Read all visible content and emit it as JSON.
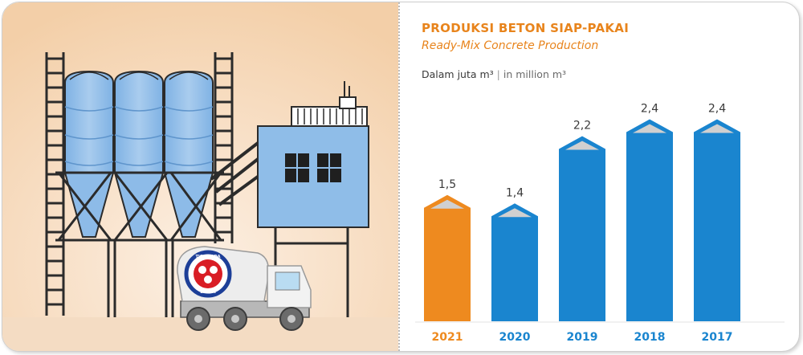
{
  "header": {
    "title": "PRODUKSI BETON SIAP-PAKAI",
    "subtitle": "Ready-Mix Concrete Production",
    "unit_id": "Dalam juta m³",
    "unit_separator": "|",
    "unit_en": "in million m³"
  },
  "illustration": {
    "truck_logo_top": "TIGA RODA",
    "truck_logo_bottom": "SEMEN"
  },
  "colors": {
    "highlight": "#ee8a1f",
    "bar": "#1a85cf",
    "bar_cap_inner": "#d0d0d0",
    "label": "#3a3a3a"
  },
  "chart_data": {
    "type": "bar",
    "categories": [
      "2021",
      "2020",
      "2019",
      "2018",
      "2017"
    ],
    "values": [
      1.5,
      1.4,
      2.2,
      2.4,
      2.4
    ],
    "value_labels": [
      "1,5",
      "1,4",
      "2,2",
      "2,4",
      "2,4"
    ],
    "highlight_category": "2021",
    "title": "PRODUKSI BETON SIAP-PAKAI",
    "subtitle": "Ready-Mix Concrete Production",
    "unit_label": "Dalam juta m³ | in million m³",
    "xlabel": "",
    "ylabel": "",
    "ylim": [
      0,
      2.6
    ],
    "grid": false,
    "legend": "none"
  }
}
